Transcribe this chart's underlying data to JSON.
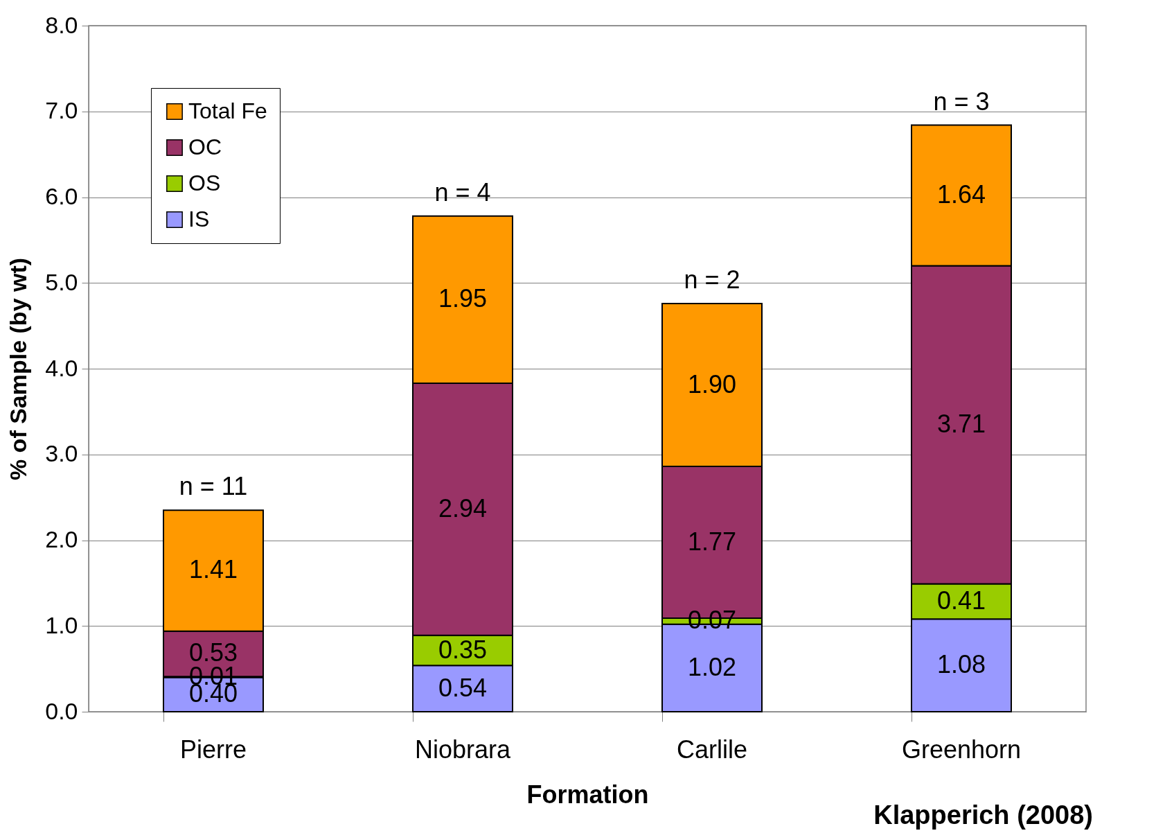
{
  "chart_data": {
    "type": "bar",
    "stacked": true,
    "xlabel": "Formation",
    "ylabel": "% of Sample (by wt)",
    "categories": [
      "Pierre",
      "Niobrara",
      "Carlile",
      "Greenhorn"
    ],
    "series": [
      {
        "name": "IS",
        "color": "#9999ff",
        "values": [
          0.4,
          0.54,
          1.02,
          1.08
        ],
        "value_labels": [
          "0.40",
          "0.54",
          "1.02",
          "1.08"
        ]
      },
      {
        "name": "OS",
        "color": "#99cc00",
        "values": [
          0.01,
          0.35,
          0.07,
          0.41
        ],
        "value_labels": [
          "0.01",
          "0.35",
          "0.07",
          "0.41"
        ]
      },
      {
        "name": "OC",
        "color": "#993366",
        "values": [
          0.53,
          2.94,
          1.77,
          3.71
        ],
        "value_labels": [
          "0.53",
          "2.94",
          "1.77",
          "3.71"
        ]
      },
      {
        "name": "Total Fe",
        "color": "#ff9900",
        "values": [
          1.41,
          1.95,
          1.9,
          1.64
        ],
        "value_labels": [
          "1.41",
          "1.95",
          "1.90",
          "1.64"
        ]
      }
    ],
    "ylim": [
      0,
      8
    ],
    "yticks": [
      {
        "value": 0,
        "label": "0.0"
      },
      {
        "value": 1,
        "label": "1.0"
      },
      {
        "value": 2,
        "label": "2.0"
      },
      {
        "value": 3,
        "label": "3.0"
      },
      {
        "value": 4,
        "label": "4.0"
      },
      {
        "value": 5,
        "label": "5.0"
      },
      {
        "value": 6,
        "label": "6.0"
      },
      {
        "value": 7,
        "label": "7.0"
      },
      {
        "value": 8,
        "label": "8.0"
      }
    ],
    "grid": "y",
    "legend": "top left",
    "annotations": [
      {
        "text": "n = 11",
        "x": "Pierre",
        "y": 2.35
      },
      {
        "text": "n = 4",
        "x": "Niobrara",
        "y": 5.78
      },
      {
        "text": "n = 2",
        "x": "Carlile",
        "y": 4.76
      },
      {
        "text": "n = 3",
        "x": "Greenhorn",
        "y": 6.84
      },
      "Klapperich (2008)"
    ]
  }
}
